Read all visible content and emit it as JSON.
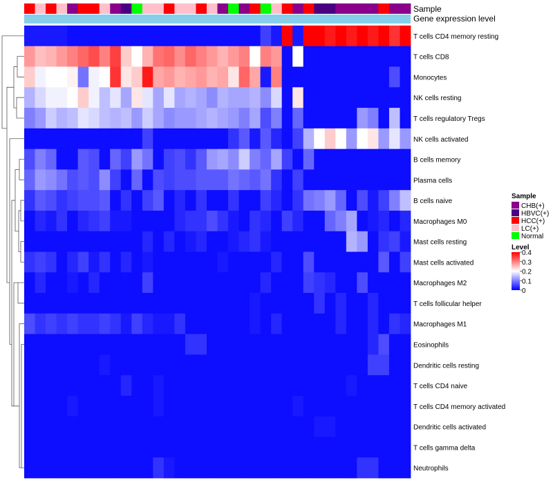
{
  "chart_data": {
    "type": "heatmap",
    "annotation_tracks": [
      "Sample",
      "Gene expression level"
    ],
    "rows": [
      "T cells CD4 memory resting",
      "T cells CD8",
      "Monocytes",
      "NK cells resting",
      "T cells regulatory  Tregs",
      "NK cells activated",
      "B cells memory",
      "Plasma cells",
      "B cells naive",
      "Macrophages M0",
      "Mast cells resting",
      "Mast cells activated",
      "Macrophages M2",
      "T cells follicular helper",
      "Macrophages M1",
      "Eosinophils",
      "Dendritic cells resting",
      "T cells CD4 naive",
      "T cells CD4 memory activated",
      "Dendritic cells activated",
      "T cells gamma delta",
      "Neutrophils"
    ],
    "sample_groups": [
      "HCC(+)",
      "LC(+)",
      "HCC(+)",
      "LC(+)",
      "CHB(+)",
      "HCC(+)",
      "HCC(+)",
      "LC(+)",
      "CHB(+)",
      "HBVC(+)",
      "Normal",
      "LC(+)",
      "LC(+)",
      "HCC(+)",
      "LC(+)",
      "LC(+)",
      "HCC(+)",
      "LC(+)",
      "CHB(+)",
      "Normal",
      "CHB(+)",
      "HCC(+)",
      "Normal",
      "LC(+)",
      "HCC(+)",
      "CHB(+)",
      "HCC(+)",
      "HBVC(+)",
      "HBVC(+)",
      "CHB(+)",
      "CHB(+)",
      "CHB(+)",
      "CHB(+)",
      "HCC(+)",
      "CHB(+)",
      "CHB(+)"
    ],
    "values": [
      [
        0.02,
        0.02,
        0.02,
        0.02,
        0.01,
        0.01,
        0.01,
        0.01,
        0.01,
        0.01,
        0.01,
        0.01,
        0.01,
        0.01,
        0.01,
        0.01,
        0.01,
        0.01,
        0.01,
        0.01,
        0.01,
        0.01,
        0.05,
        0.02,
        0.4,
        0.02,
        0.4,
        0.4,
        0.38,
        0.4,
        0.38,
        0.4,
        0.38,
        0.4,
        0.36,
        0.4
      ],
      [
        0.28,
        0.25,
        0.26,
        0.28,
        0.3,
        0.32,
        0.34,
        0.3,
        0.35,
        0.24,
        0.2,
        0.26,
        0.31,
        0.32,
        0.29,
        0.32,
        0.3,
        0.28,
        0.26,
        0.28,
        0.3,
        0.2,
        0.3,
        0.28,
        0.01,
        0.2,
        0.01,
        0.01,
        0.01,
        0.01,
        0.01,
        0.01,
        0.01,
        0.01,
        0.01,
        0.01
      ],
      [
        0.24,
        0.19,
        0.2,
        0.2,
        0.21,
        0.09,
        0.19,
        0.2,
        0.36,
        0.22,
        0.24,
        0.38,
        0.27,
        0.28,
        0.26,
        0.27,
        0.28,
        0.26,
        0.27,
        0.22,
        0.32,
        0.27,
        0.02,
        0.3,
        0.01,
        0.01,
        0.01,
        0.01,
        0.01,
        0.01,
        0.01,
        0.01,
        0.01,
        0.01,
        0.06,
        0.01
      ],
      [
        0.14,
        0.17,
        0.19,
        0.19,
        0.2,
        0.24,
        0.19,
        0.15,
        0.18,
        0.13,
        0.22,
        0.18,
        0.13,
        0.18,
        0.13,
        0.14,
        0.13,
        0.11,
        0.14,
        0.13,
        0.13,
        0.14,
        0.11,
        0.17,
        0.01,
        0.22,
        0.01,
        0.01,
        0.01,
        0.01,
        0.01,
        0.01,
        0.01,
        0.01,
        0.01,
        0.01
      ],
      [
        0.1,
        0.12,
        0.16,
        0.14,
        0.15,
        0.18,
        0.17,
        0.15,
        0.14,
        0.15,
        0.12,
        0.16,
        0.13,
        0.11,
        0.12,
        0.12,
        0.13,
        0.14,
        0.13,
        0.12,
        0.1,
        0.13,
        0.06,
        0.1,
        0.01,
        0.08,
        0.01,
        0.01,
        0.01,
        0.01,
        0.01,
        0.12,
        0.1,
        0.01,
        0.15,
        0.01
      ],
      [
        0.01,
        0.01,
        0.01,
        0.01,
        0.01,
        0.01,
        0.01,
        0.01,
        0.01,
        0.01,
        0.01,
        0.05,
        0.01,
        0.01,
        0.01,
        0.01,
        0.01,
        0.01,
        0.01,
        0.04,
        0.07,
        0.02,
        0.07,
        0.03,
        0.01,
        0.05,
        0.14,
        0.2,
        0.24,
        0.2,
        0.12,
        0.2,
        0.22,
        0.12,
        0.18,
        0.12
      ],
      [
        0.06,
        0.1,
        0.08,
        0.01,
        0.01,
        0.07,
        0.06,
        0.01,
        0.08,
        0.05,
        0.12,
        0.09,
        0.01,
        0.05,
        0.06,
        0.04,
        0.07,
        0.12,
        0.13,
        0.11,
        0.16,
        0.1,
        0.08,
        0.13,
        0.05,
        0.01,
        0.08,
        0.01,
        0.01,
        0.01,
        0.01,
        0.01,
        0.01,
        0.01,
        0.01,
        0.01
      ],
      [
        0.08,
        0.12,
        0.11,
        0.09,
        0.06,
        0.07,
        0.06,
        0.11,
        0.05,
        0.01,
        0.08,
        0.01,
        0.06,
        0.05,
        0.06,
        0.06,
        0.07,
        0.07,
        0.07,
        0.09,
        0.08,
        0.07,
        0.09,
        0.04,
        0.01,
        0.05,
        0.01,
        0.01,
        0.01,
        0.01,
        0.01,
        0.01,
        0.01,
        0.01,
        0.01,
        0.01
      ],
      [
        0.04,
        0.07,
        0.06,
        0.04,
        0.05,
        0.06,
        0.06,
        0.07,
        0.01,
        0.04,
        0.01,
        0.05,
        0.07,
        0.01,
        0.03,
        0.01,
        0.04,
        0.01,
        0.01,
        0.04,
        0.01,
        0.01,
        0.05,
        0.03,
        0.01,
        0.04,
        0.09,
        0.1,
        0.12,
        0.08,
        0.01,
        0.06,
        0.02,
        0.05,
        0.1,
        0.15
      ],
      [
        0.01,
        0.03,
        0.02,
        0.04,
        0.01,
        0.03,
        0.04,
        0.05,
        0.02,
        0.02,
        0.01,
        0.01,
        0.01,
        0.01,
        0.03,
        0.04,
        0.04,
        0.06,
        0.04,
        0.02,
        0.01,
        0.04,
        0.03,
        0.01,
        0.05,
        0.03,
        0.01,
        0.01,
        0.08,
        0.1,
        0.13,
        0.01,
        0.02,
        0.03,
        0.01,
        0.03
      ],
      [
        0.01,
        0.01,
        0.01,
        0.01,
        0.01,
        0.01,
        0.01,
        0.01,
        0.01,
        0.01,
        0.01,
        0.03,
        0.01,
        0.03,
        0.01,
        0.02,
        0.03,
        0.01,
        0.01,
        0.02,
        0.03,
        0.04,
        0.02,
        0.01,
        0.01,
        0.01,
        0.01,
        0.01,
        0.01,
        0.01,
        0.14,
        0.12,
        0.01,
        0.04,
        0.05,
        0.02
      ],
      [
        0.04,
        0.05,
        0.04,
        0.01,
        0.03,
        0.05,
        0.02,
        0.04,
        0.01,
        0.03,
        0.01,
        0.02,
        0.01,
        0.01,
        0.01,
        0.01,
        0.01,
        0.01,
        0.02,
        0.01,
        0.01,
        0.01,
        0.01,
        0.03,
        0.01,
        0.01,
        0.06,
        0.01,
        0.01,
        0.01,
        0.01,
        0.01,
        0.01,
        0.07,
        0.01,
        0.05
      ],
      [
        0.01,
        0.03,
        0.01,
        0.01,
        0.02,
        0.01,
        0.03,
        0.01,
        0.01,
        0.01,
        0.01,
        0.05,
        0.01,
        0.01,
        0.01,
        0.01,
        0.01,
        0.01,
        0.01,
        0.01,
        0.01,
        0.01,
        0.03,
        0.01,
        0.01,
        0.01,
        0.05,
        0.04,
        0.03,
        0.01,
        0.01,
        0.06,
        0.01,
        0.01,
        0.01,
        0.01
      ],
      [
        0.01,
        0.01,
        0.01,
        0.01,
        0.01,
        0.01,
        0.01,
        0.01,
        0.01,
        0.01,
        0.01,
        0.01,
        0.01,
        0.01,
        0.01,
        0.01,
        0.01,
        0.01,
        0.01,
        0.01,
        0.01,
        0.02,
        0.01,
        0.01,
        0.01,
        0.01,
        0.01,
        0.04,
        0.01,
        0.03,
        0.01,
        0.01,
        0.03,
        0.01,
        0.01,
        0.01
      ],
      [
        0.06,
        0.04,
        0.05,
        0.04,
        0.05,
        0.04,
        0.04,
        0.05,
        0.04,
        0.02,
        0.05,
        0.03,
        0.02,
        0.02,
        0.04,
        0.01,
        0.01,
        0.01,
        0.01,
        0.01,
        0.01,
        0.02,
        0.01,
        0.03,
        0.01,
        0.01,
        0.01,
        0.01,
        0.01,
        0.03,
        0.01,
        0.01,
        0.03,
        0.01,
        0.04,
        0.03
      ],
      [
        0.01,
        0.01,
        0.01,
        0.01,
        0.01,
        0.01,
        0.01,
        0.01,
        0.01,
        0.01,
        0.01,
        0.01,
        0.01,
        0.01,
        0.01,
        0.04,
        0.04,
        0.01,
        0.01,
        0.01,
        0.01,
        0.01,
        0.01,
        0.01,
        0.01,
        0.01,
        0.01,
        0.01,
        0.01,
        0.01,
        0.01,
        0.01,
        0.03,
        0.06,
        0.01,
        0.01
      ],
      [
        0.01,
        0.01,
        0.01,
        0.01,
        0.01,
        0.01,
        0.01,
        0.02,
        0.01,
        0.01,
        0.01,
        0.01,
        0.01,
        0.01,
        0.01,
        0.01,
        0.01,
        0.01,
        0.01,
        0.01,
        0.01,
        0.01,
        0.01,
        0.01,
        0.01,
        0.01,
        0.01,
        0.01,
        0.01,
        0.01,
        0.01,
        0.01,
        0.05,
        0.05,
        0.01,
        0.01
      ],
      [
        0.01,
        0.01,
        0.01,
        0.01,
        0.01,
        0.01,
        0.01,
        0.01,
        0.01,
        0.03,
        0.01,
        0.01,
        0.02,
        0.01,
        0.01,
        0.01,
        0.01,
        0.01,
        0.01,
        0.01,
        0.01,
        0.01,
        0.01,
        0.01,
        0.01,
        0.01,
        0.01,
        0.01,
        0.01,
        0.01,
        0.02,
        0.01,
        0.01,
        0.01,
        0.01,
        0.01
      ],
      [
        0.01,
        0.01,
        0.01,
        0.01,
        0.02,
        0.01,
        0.01,
        0.01,
        0.01,
        0.01,
        0.01,
        0.01,
        0.02,
        0.01,
        0.01,
        0.01,
        0.01,
        0.01,
        0.01,
        0.01,
        0.01,
        0.01,
        0.01,
        0.01,
        0.01,
        0.02,
        0.01,
        0.01,
        0.01,
        0.01,
        0.01,
        0.01,
        0.01,
        0.01,
        0.01,
        0.01
      ],
      [
        0.01,
        0.01,
        0.01,
        0.01,
        0.01,
        0.01,
        0.01,
        0.01,
        0.01,
        0.01,
        0.01,
        0.01,
        0.01,
        0.01,
        0.01,
        0.01,
        0.01,
        0.01,
        0.01,
        0.01,
        0.01,
        0.01,
        0.01,
        0.01,
        0.01,
        0.01,
        0.01,
        0.02,
        0.02,
        0.01,
        0.01,
        0.01,
        0.01,
        0.01,
        0.01,
        0.01
      ],
      [
        0.01,
        0.01,
        0.01,
        0.01,
        0.01,
        0.01,
        0.01,
        0.01,
        0.01,
        0.01,
        0.01,
        0.01,
        0.01,
        0.01,
        0.01,
        0.01,
        0.01,
        0.01,
        0.01,
        0.01,
        0.01,
        0.01,
        0.01,
        0.01,
        0.01,
        0.01,
        0.01,
        0.01,
        0.01,
        0.01,
        0.01,
        0.01,
        0.01,
        0.01,
        0.01,
        0.01
      ],
      [
        0.01,
        0.01,
        0.01,
        0.01,
        0.01,
        0.01,
        0.01,
        0.01,
        0.01,
        0.01,
        0.01,
        0.01,
        0.04,
        0.02,
        0.01,
        0.01,
        0.01,
        0.01,
        0.01,
        0.01,
        0.01,
        0.01,
        0.01,
        0.01,
        0.01,
        0.01,
        0.01,
        0.01,
        0.01,
        0.01,
        0.01,
        0.04,
        0.04,
        0.01,
        0.01,
        0.01
      ]
    ],
    "color_scale": {
      "min": 0,
      "mid": 0.2,
      "max": 0.4,
      "colors": [
        "#0000ff",
        "#ffffff",
        "#ff0000"
      ]
    },
    "legend_sample": {
      "title": "Sample",
      "entries": [
        {
          "label": "CHB(+)",
          "color": "#8b008b"
        },
        {
          "label": "HBVC(+)",
          "color": "#4b0082"
        },
        {
          "label": "HCC(+)",
          "color": "#ff0000"
        },
        {
          "label": "LC(+)",
          "color": "#ffc0cb"
        },
        {
          "label": "Normal",
          "color": "#00ff00"
        }
      ]
    },
    "legend_level": {
      "title": "Level",
      "ticks": [
        "0.4",
        "0.3",
        "0.2",
        "0.1",
        "0"
      ]
    },
    "level_track_color": "#87ceeb"
  }
}
